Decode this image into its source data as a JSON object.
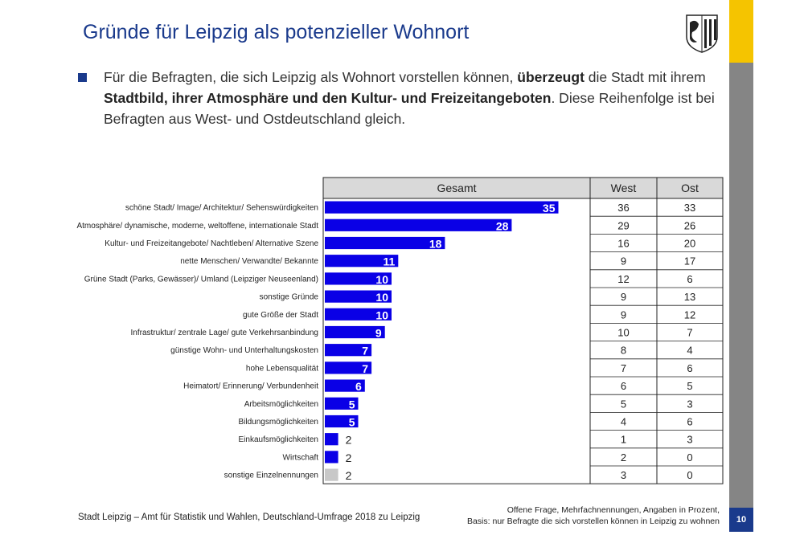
{
  "header": {
    "title": "Gründe für Leipzig als potenzieller Wohnort",
    "logo": "leipzig-coat-of-arms-icon"
  },
  "bullet": {
    "text_1": "Für die Befragten, die sich Leipzig als Wohnort vorstellen können, ",
    "bold_1": "überzeugt",
    "text_2": " die Stadt mit ihrem ",
    "bold_2": "Stadtbild, ihrer Atmosphäre und den Kultur- und Freizeitangeboten",
    "text_3": ". Diese Reihenfolge ist bei Befragten aus West- und Ostdeutschland gleich."
  },
  "footer": {
    "source": "Stadt Leipzig – Amt für Statistik und Wahlen, Deutschland-Umfrage 2018 zu Leipzig",
    "note_1": "Offene Frage, Mehrfachnennungen, Angaben in Prozent,",
    "note_2": "Basis: nur Befragte die sich vorstellen können in Leipzig zu wohnen",
    "page_number": "10"
  },
  "colors": {
    "bar": "#0a00e6",
    "bar_other": "#c8c8c8",
    "title": "#1a3a8c",
    "accent_yellow": "#f5c400",
    "accent_gray": "#858585"
  },
  "chart_data": {
    "type": "bar",
    "orientation": "horizontal",
    "columns": [
      "Gesamt",
      "West",
      "Ost"
    ],
    "categories": [
      "schöne Stadt/ Image/ Architektur/ Sehenswürdigkeiten",
      "Atmosphäre/ dynamische, moderne, weltoffene, internationale Stadt",
      "Kultur- und Freizeitangebote/ Nachtleben/ Alternative Szene",
      "nette Menschen/ Verwandte/ Bekannte",
      "Grüne Stadt (Parks, Gewässer)/ Umland (Leipziger Neuseenland)",
      "sonstige Gründe",
      "gute Größe der Stadt",
      "Infrastruktur/ zentrale Lage/ gute Verkehrsanbindung",
      "günstige Wohn- und Unterhaltungskosten",
      "hohe Lebensqualität",
      "Heimatort/ Erinnerung/ Verbundenheit",
      "Arbeitsmöglichkeiten",
      "Bildungsmöglichkeiten",
      "Einkaufsmöglichkeiten",
      "Wirtschaft",
      "sonstige Einzelnennungen"
    ],
    "series": [
      {
        "name": "Gesamt",
        "values": [
          35,
          28,
          18,
          11,
          10,
          10,
          10,
          9,
          7,
          7,
          6,
          5,
          5,
          2,
          2,
          2
        ]
      },
      {
        "name": "West",
        "values": [
          36,
          29,
          16,
          9,
          12,
          9,
          9,
          10,
          8,
          7,
          6,
          5,
          4,
          1,
          2,
          3
        ]
      },
      {
        "name": "Ost",
        "values": [
          33,
          26,
          20,
          17,
          6,
          13,
          12,
          7,
          4,
          6,
          5,
          3,
          6,
          3,
          0,
          0
        ]
      }
    ],
    "xlim": [
      0,
      40
    ]
  }
}
